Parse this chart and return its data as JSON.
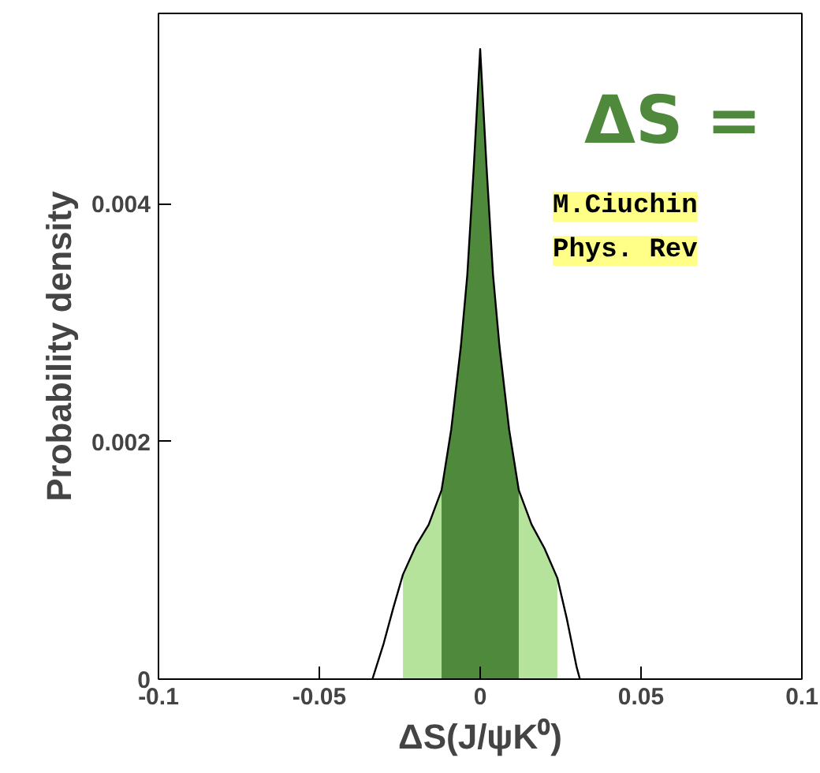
{
  "chart_data": {
    "type": "area",
    "xlabel": "ΔS(J/ψK⁰)",
    "ylabel": "Probability density",
    "xlim": [
      -0.1,
      0.1
    ],
    "ylim": [
      0,
      0.0056
    ],
    "xticks": [
      -0.1,
      -0.05,
      0,
      0.05,
      0.1
    ],
    "yticks": [
      0,
      0.002,
      0.004
    ],
    "grid": false,
    "annotations": [
      "ΔS =",
      "M.Ciuchin",
      "Phys. Rev"
    ],
    "series": [
      {
        "color": "#b5e39c",
        "x": [
          -0.024,
          -0.02,
          -0.016,
          -0.012,
          -0.009,
          -0.006,
          -0.004,
          -0.002,
          0,
          0.002,
          0.004,
          0.006,
          0.009,
          0.012,
          0.016,
          0.02,
          0.024
        ],
        "values": [
          0.00088,
          0.00112,
          0.0013,
          0.00159,
          0.0021,
          0.0028,
          0.0034,
          0.0043,
          0.0053,
          0.0043,
          0.0034,
          0.0028,
          0.0021,
          0.00159,
          0.0013,
          0.0011,
          0.00085
        ]
      },
      {
        "color": "#4f8a3c",
        "x": [
          -0.012,
          -0.009,
          -0.006,
          -0.004,
          -0.002,
          0,
          0.002,
          0.004,
          0.006,
          0.009,
          0.012
        ],
        "values": [
          0.00159,
          0.0021,
          0.0028,
          0.0034,
          0.0043,
          0.0053,
          0.0043,
          0.0034,
          0.0028,
          0.0021,
          0.00159
        ]
      },
      {
        "type": "line",
        "color": "#000000",
        "x": [
          -0.0335,
          -0.03,
          -0.027,
          -0.024,
          -0.02,
          -0.016,
          -0.012,
          -0.009,
          -0.006,
          -0.004,
          -0.002,
          0,
          0.002,
          0.004,
          0.006,
          0.009,
          0.012,
          0.016,
          0.02,
          0.024,
          0.027,
          0.03,
          0.031
        ],
        "values": [
          0,
          0.0003,
          0.0006,
          0.00088,
          0.00112,
          0.0013,
          0.00159,
          0.0021,
          0.0028,
          0.0034,
          0.0043,
          0.0053,
          0.0043,
          0.0034,
          0.0028,
          0.0021,
          0.00159,
          0.0013,
          0.0011,
          0.00085,
          0.0005,
          0.0001,
          0
        ]
      }
    ]
  }
}
